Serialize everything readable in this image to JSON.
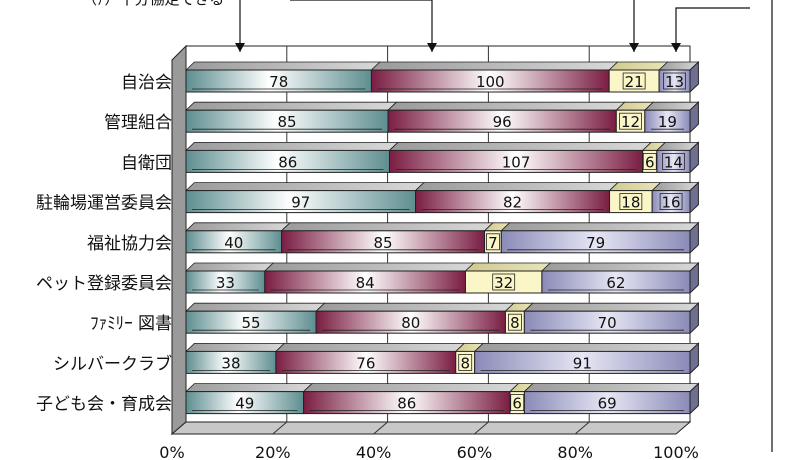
{
  "chart_data": {
    "type": "bar",
    "stacked": "percent",
    "orientation": "horizontal",
    "categories": [
      "自治会",
      "管理組合",
      "自衛団",
      "駐輪場運営委員会",
      "福祉協力会",
      "ペット登録委員会",
      "ﾌｧﾐﾘｰ 図書",
      "シルバークラブ",
      "子ども会・育成会"
    ],
    "series": [
      {
        "values": [
          78,
          85,
          86,
          97,
          40,
          33,
          55,
          38,
          49
        ]
      },
      {
        "values": [
          100,
          96,
          107,
          82,
          85,
          84,
          80,
          76,
          86
        ]
      },
      {
        "values": [
          21,
          12,
          6,
          18,
          7,
          32,
          8,
          8,
          6
        ]
      },
      {
        "values": [
          13,
          19,
          14,
          16,
          79,
          62,
          70,
          91,
          69
        ]
      }
    ],
    "x_ticks": [
      "0%",
      "20%",
      "40%",
      "60%",
      "80%",
      "100%"
    ],
    "xlim": [
      0,
      100
    ],
    "grid": true,
    "legend_fragment": "（ｱ）十分協走できる"
  },
  "colors": {
    "series": [
      "#5e8e90",
      "#7a1d42",
      "#d9cf8a",
      "#8a8ab8"
    ],
    "series_light": [
      "#ffffff",
      "#ffffff",
      "#fbf6c8",
      "#e6e6f4"
    ],
    "wall": "#9a9a9a",
    "floor": "#c8c8c8"
  }
}
